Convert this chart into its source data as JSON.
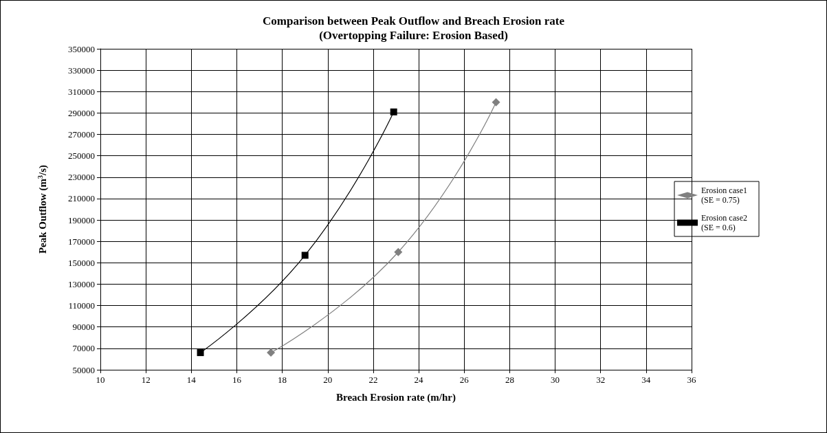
{
  "chart_data": {
    "type": "line",
    "title": "Comparison between Peak Outflow and Breach Erosion rate",
    "subtitle": "(Overtopping Failure: Erosion Based)",
    "xlabel": "Breach Erosion rate (m/hr)",
    "ylabel": "Peak Outflow (m$^{3}$/s)",
    "series": [
      {
        "name": "Erosion case1 (SE = 0.75)",
        "color": "#808080",
        "marker": "diamond",
        "x": [
          17.5,
          23.1,
          27.4
        ],
        "values": [
          66000,
          160000,
          300000
        ]
      },
      {
        "name": "Erosion case2 (SE = 0.6)",
        "color": "#000000",
        "marker": "square",
        "x": [
          14.4,
          19.0,
          22.9
        ],
        "values": [
          66000,
          157000,
          291000
        ]
      }
    ],
    "xlim": [
      10,
      36
    ],
    "xticks": [
      10,
      12,
      14,
      16,
      18,
      20,
      22,
      24,
      26,
      28,
      30,
      32,
      34,
      36
    ],
    "ylim": [
      50000,
      350000
    ],
    "yticks": [
      50000,
      70000,
      90000,
      110000,
      130000,
      150000,
      170000,
      190000,
      210000,
      230000,
      250000,
      270000,
      290000,
      310000,
      330000,
      350000
    ],
    "grid": true,
    "legend": "right",
    "line_style": "solid"
  }
}
